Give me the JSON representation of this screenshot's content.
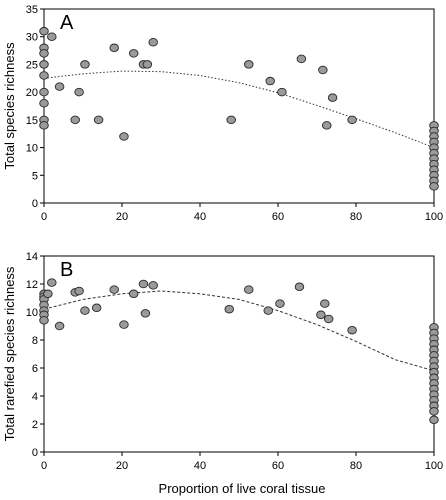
{
  "figure": {
    "xlabel": "Proportion of live coral tissue"
  },
  "chart_data": [
    {
      "type": "scatter",
      "panel": "A",
      "ylabel": "Total species richness",
      "xlim": [
        0,
        100
      ],
      "ylim": [
        0,
        35
      ],
      "xticks": [
        0,
        20,
        40,
        60,
        80,
        100
      ],
      "yticks": [
        0,
        5,
        10,
        15,
        20,
        25,
        30,
        35
      ],
      "grid": false,
      "legend": false,
      "colors": {
        "marker_fill": "#9a9a9a",
        "marker_edge": "#2a2a2a",
        "trend": "#333333"
      },
      "points": [
        [
          0,
          31
        ],
        [
          0,
          28
        ],
        [
          0,
          27
        ],
        [
          0,
          25
        ],
        [
          0,
          23
        ],
        [
          0,
          20
        ],
        [
          0,
          18
        ],
        [
          0,
          15
        ],
        [
          0,
          14
        ],
        [
          2,
          30
        ],
        [
          4,
          21
        ],
        [
          8,
          15
        ],
        [
          9,
          20
        ],
        [
          10.5,
          25
        ],
        [
          14,
          15
        ],
        [
          18,
          28
        ],
        [
          20.5,
          12
        ],
        [
          23,
          27
        ],
        [
          25.5,
          25
        ],
        [
          26.5,
          25
        ],
        [
          28,
          29
        ],
        [
          48,
          15
        ],
        [
          52.5,
          25
        ],
        [
          58,
          22
        ],
        [
          61,
          20
        ],
        [
          66,
          26
        ],
        [
          71.5,
          24
        ],
        [
          72.5,
          14
        ],
        [
          74,
          19
        ],
        [
          79,
          15
        ],
        [
          100,
          14
        ],
        [
          100,
          13
        ],
        [
          100,
          12
        ],
        [
          100,
          11
        ],
        [
          100,
          10
        ],
        [
          100,
          9
        ],
        [
          100,
          8
        ],
        [
          100,
          7
        ],
        [
          100,
          6
        ],
        [
          100,
          5
        ],
        [
          100,
          4
        ],
        [
          100,
          3
        ]
      ],
      "trend": {
        "style": "dotted",
        "x": [
          0,
          10,
          20,
          30,
          40,
          50,
          60,
          70,
          80,
          90,
          100
        ],
        "y": [
          22.5,
          23.3,
          23.8,
          23.7,
          23.0,
          21.7,
          19.9,
          17.6,
          15.2,
          12.7,
          10.0
        ]
      }
    },
    {
      "type": "scatter",
      "panel": "B",
      "ylabel": "Total rarefied species richness",
      "xlim": [
        0,
        100
      ],
      "ylim": [
        0,
        14
      ],
      "xticks": [
        0,
        20,
        40,
        60,
        80,
        100
      ],
      "yticks": [
        0,
        2,
        4,
        6,
        8,
        10,
        12,
        14
      ],
      "grid": false,
      "legend": false,
      "colors": {
        "marker_fill": "#9a9a9a",
        "marker_edge": "#2a2a2a",
        "trend": "#333333"
      },
      "points": [
        [
          0,
          11.3
        ],
        [
          0,
          11.1
        ],
        [
          0,
          10.9
        ],
        [
          0,
          10.5
        ],
        [
          0,
          10.1
        ],
        [
          0,
          9.8
        ],
        [
          0,
          9.4
        ],
        [
          1,
          11.3
        ],
        [
          2,
          12.1
        ],
        [
          4,
          9.0
        ],
        [
          8,
          11.4
        ],
        [
          9,
          11.5
        ],
        [
          10.5,
          10.1
        ],
        [
          13.5,
          10.3
        ],
        [
          18,
          11.6
        ],
        [
          20.5,
          9.1
        ],
        [
          23,
          11.3
        ],
        [
          25.5,
          12.0
        ],
        [
          26,
          9.9
        ],
        [
          28,
          11.9
        ],
        [
          47.5,
          10.2
        ],
        [
          52.5,
          11.6
        ],
        [
          57.5,
          10.1
        ],
        [
          60.5,
          10.6
        ],
        [
          65.5,
          11.8
        ],
        [
          71,
          9.8
        ],
        [
          72,
          10.6
        ],
        [
          73,
          9.5
        ],
        [
          79,
          8.7
        ],
        [
          100,
          8.9
        ],
        [
          100,
          8.5
        ],
        [
          100,
          8.1
        ],
        [
          100,
          7.7
        ],
        [
          100,
          7.3
        ],
        [
          100,
          6.9
        ],
        [
          100,
          6.5
        ],
        [
          100,
          6.1
        ],
        [
          100,
          5.7
        ],
        [
          100,
          5.3
        ],
        [
          100,
          4.9
        ],
        [
          100,
          4.5
        ],
        [
          100,
          4.1
        ],
        [
          100,
          3.7
        ],
        [
          100,
          3.3
        ],
        [
          100,
          2.9
        ],
        [
          100,
          2.3
        ]
      ],
      "trend": {
        "style": "dashed",
        "x": [
          0,
          10,
          20,
          30,
          40,
          50,
          60,
          70,
          80,
          90,
          100
        ],
        "y": [
          10.2,
          10.9,
          11.3,
          11.5,
          11.3,
          10.9,
          10.1,
          9.1,
          7.9,
          6.6,
          5.8
        ]
      }
    }
  ]
}
